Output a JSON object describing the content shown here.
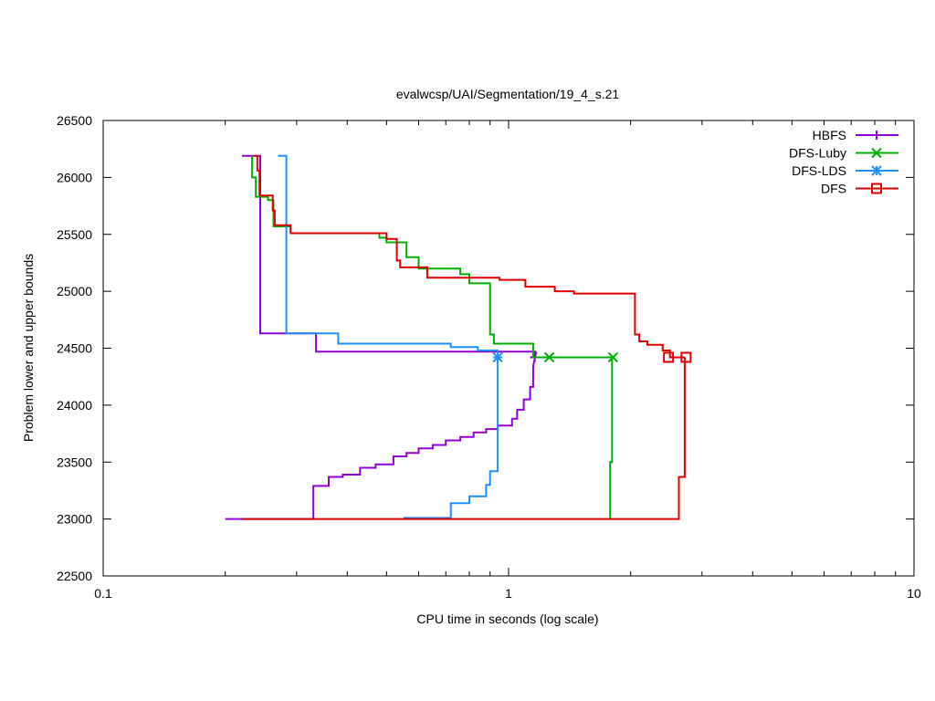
{
  "chart_data": {
    "type": "line",
    "title": "evalwcsp/UAI/Segmentation/19_4_s.21",
    "xlabel": "CPU time in seconds (log scale)",
    "ylabel": "Problem lower and upper bounds",
    "x_scale": "log",
    "xlim": [
      0.1,
      10
    ],
    "ylim": [
      22500,
      26500
    ],
    "x_ticks": [
      0.1,
      1,
      10
    ],
    "x_tick_labels": [
      "0.1",
      "1",
      "10"
    ],
    "y_ticks": [
      22500,
      23000,
      23500,
      24000,
      24500,
      25000,
      25500,
      26000,
      26500
    ],
    "y_tick_labels": [
      "22500",
      "23000",
      "23500",
      "24000",
      "24500",
      "25000",
      "25500",
      "26000",
      "26500"
    ],
    "grid": false,
    "legend_position": "top-right",
    "series": [
      {
        "name": "HBFS",
        "color": "#9400d3",
        "marker": "plus",
        "upper": [
          [
            0.22,
            26190
          ],
          [
            0.244,
            26190
          ],
          [
            0.244,
            24630
          ],
          [
            0.335,
            24630
          ],
          [
            0.335,
            24470
          ],
          [
            1.17,
            24470
          ]
        ],
        "lower": [
          [
            0.2,
            23000
          ],
          [
            0.33,
            23000
          ],
          [
            0.33,
            23290
          ],
          [
            0.36,
            23290
          ],
          [
            0.36,
            23370
          ],
          [
            0.39,
            23370
          ],
          [
            0.39,
            23390
          ],
          [
            0.43,
            23390
          ],
          [
            0.43,
            23450
          ],
          [
            0.47,
            23450
          ],
          [
            0.47,
            23480
          ],
          [
            0.52,
            23480
          ],
          [
            0.52,
            23550
          ],
          [
            0.56,
            23550
          ],
          [
            0.56,
            23580
          ],
          [
            0.6,
            23580
          ],
          [
            0.6,
            23620
          ],
          [
            0.65,
            23620
          ],
          [
            0.65,
            23650
          ],
          [
            0.7,
            23650
          ],
          [
            0.7,
            23690
          ],
          [
            0.76,
            23690
          ],
          [
            0.76,
            23720
          ],
          [
            0.82,
            23720
          ],
          [
            0.82,
            23760
          ],
          [
            0.88,
            23760
          ],
          [
            0.88,
            23790
          ],
          [
            0.94,
            23790
          ],
          [
            0.94,
            23820
          ],
          [
            1.02,
            23820
          ],
          [
            1.02,
            23880
          ],
          [
            1.05,
            23880
          ],
          [
            1.05,
            23960
          ],
          [
            1.09,
            23960
          ],
          [
            1.09,
            24050
          ],
          [
            1.13,
            24050
          ],
          [
            1.13,
            24160
          ],
          [
            1.15,
            24160
          ],
          [
            1.15,
            24340
          ],
          [
            1.17,
            24470
          ]
        ],
        "marker_points": [
          [
            1.16,
            24420
          ]
        ]
      },
      {
        "name": "DFS-Luby",
        "color": "#00b000",
        "marker": "x",
        "upper": [
          [
            0.233,
            26190
          ],
          [
            0.233,
            26000
          ],
          [
            0.238,
            26000
          ],
          [
            0.238,
            25830
          ],
          [
            0.255,
            25830
          ],
          [
            0.255,
            25800
          ],
          [
            0.263,
            25800
          ],
          [
            0.263,
            25570
          ],
          [
            0.29,
            25570
          ],
          [
            0.29,
            25510
          ],
          [
            0.48,
            25510
          ],
          [
            0.48,
            25470
          ],
          [
            0.5,
            25470
          ],
          [
            0.5,
            25430
          ],
          [
            0.56,
            25430
          ],
          [
            0.56,
            25300
          ],
          [
            0.6,
            25300
          ],
          [
            0.6,
            25200
          ],
          [
            0.76,
            25200
          ],
          [
            0.76,
            25150
          ],
          [
            0.8,
            25150
          ],
          [
            0.8,
            25070
          ],
          [
            0.9,
            25070
          ],
          [
            0.9,
            24620
          ],
          [
            0.92,
            24620
          ],
          [
            0.92,
            24540
          ],
          [
            1.15,
            24540
          ],
          [
            1.15,
            24420
          ],
          [
            1.8,
            24420
          ]
        ],
        "lower": [
          [
            1.78,
            23000
          ],
          [
            1.78,
            23500
          ],
          [
            1.8,
            23500
          ],
          [
            1.8,
            24420
          ]
        ],
        "marker_points": [
          [
            1.26,
            24420
          ],
          [
            1.81,
            24420
          ]
        ]
      },
      {
        "name": "DFS-LDS",
        "color": "#1e90ff",
        "marker": "star",
        "upper": [
          [
            0.27,
            26190
          ],
          [
            0.283,
            26190
          ],
          [
            0.283,
            24630
          ],
          [
            0.38,
            24630
          ],
          [
            0.38,
            24540
          ],
          [
            0.72,
            24540
          ],
          [
            0.72,
            24510
          ],
          [
            0.84,
            24510
          ],
          [
            0.84,
            24480
          ],
          [
            0.94,
            24480
          ],
          [
            0.94,
            24420
          ]
        ],
        "lower": [
          [
            0.55,
            23010
          ],
          [
            0.72,
            23010
          ],
          [
            0.72,
            23140
          ],
          [
            0.8,
            23140
          ],
          [
            0.8,
            23200
          ],
          [
            0.88,
            23200
          ],
          [
            0.88,
            23300
          ],
          [
            0.9,
            23300
          ],
          [
            0.9,
            23420
          ],
          [
            0.94,
            23420
          ],
          [
            0.94,
            24420
          ]
        ],
        "marker_points": [
          [
            0.94,
            24420
          ]
        ]
      },
      {
        "name": "DFS",
        "color": "#e00000",
        "marker": "square",
        "upper": [
          [
            0.235,
            26190
          ],
          [
            0.24,
            26190
          ],
          [
            0.24,
            26060
          ],
          [
            0.243,
            26060
          ],
          [
            0.243,
            25840
          ],
          [
            0.262,
            25840
          ],
          [
            0.262,
            25710
          ],
          [
            0.265,
            25710
          ],
          [
            0.265,
            25580
          ],
          [
            0.29,
            25580
          ],
          [
            0.29,
            25510
          ],
          [
            0.5,
            25510
          ],
          [
            0.5,
            25460
          ],
          [
            0.53,
            25460
          ],
          [
            0.53,
            25270
          ],
          [
            0.54,
            25270
          ],
          [
            0.54,
            25210
          ],
          [
            0.63,
            25210
          ],
          [
            0.63,
            25120
          ],
          [
            0.95,
            25120
          ],
          [
            0.95,
            25100
          ],
          [
            1.1,
            25100
          ],
          [
            1.1,
            25040
          ],
          [
            1.3,
            25040
          ],
          [
            1.3,
            25000
          ],
          [
            1.45,
            25000
          ],
          [
            1.45,
            24980
          ],
          [
            2.05,
            24980
          ],
          [
            2.05,
            24620
          ],
          [
            2.1,
            24620
          ],
          [
            2.1,
            24560
          ],
          [
            2.2,
            24560
          ],
          [
            2.2,
            24530
          ],
          [
            2.4,
            24530
          ],
          [
            2.4,
            24480
          ],
          [
            2.5,
            24480
          ],
          [
            2.5,
            24420
          ],
          [
            2.72,
            24420
          ]
        ],
        "lower": [
          [
            0.22,
            23000
          ],
          [
            2.63,
            23000
          ],
          [
            2.63,
            23370
          ],
          [
            2.72,
            23370
          ],
          [
            2.72,
            24420
          ]
        ],
        "marker_points": [
          [
            2.48,
            24420
          ],
          [
            2.74,
            24420
          ]
        ]
      }
    ]
  }
}
